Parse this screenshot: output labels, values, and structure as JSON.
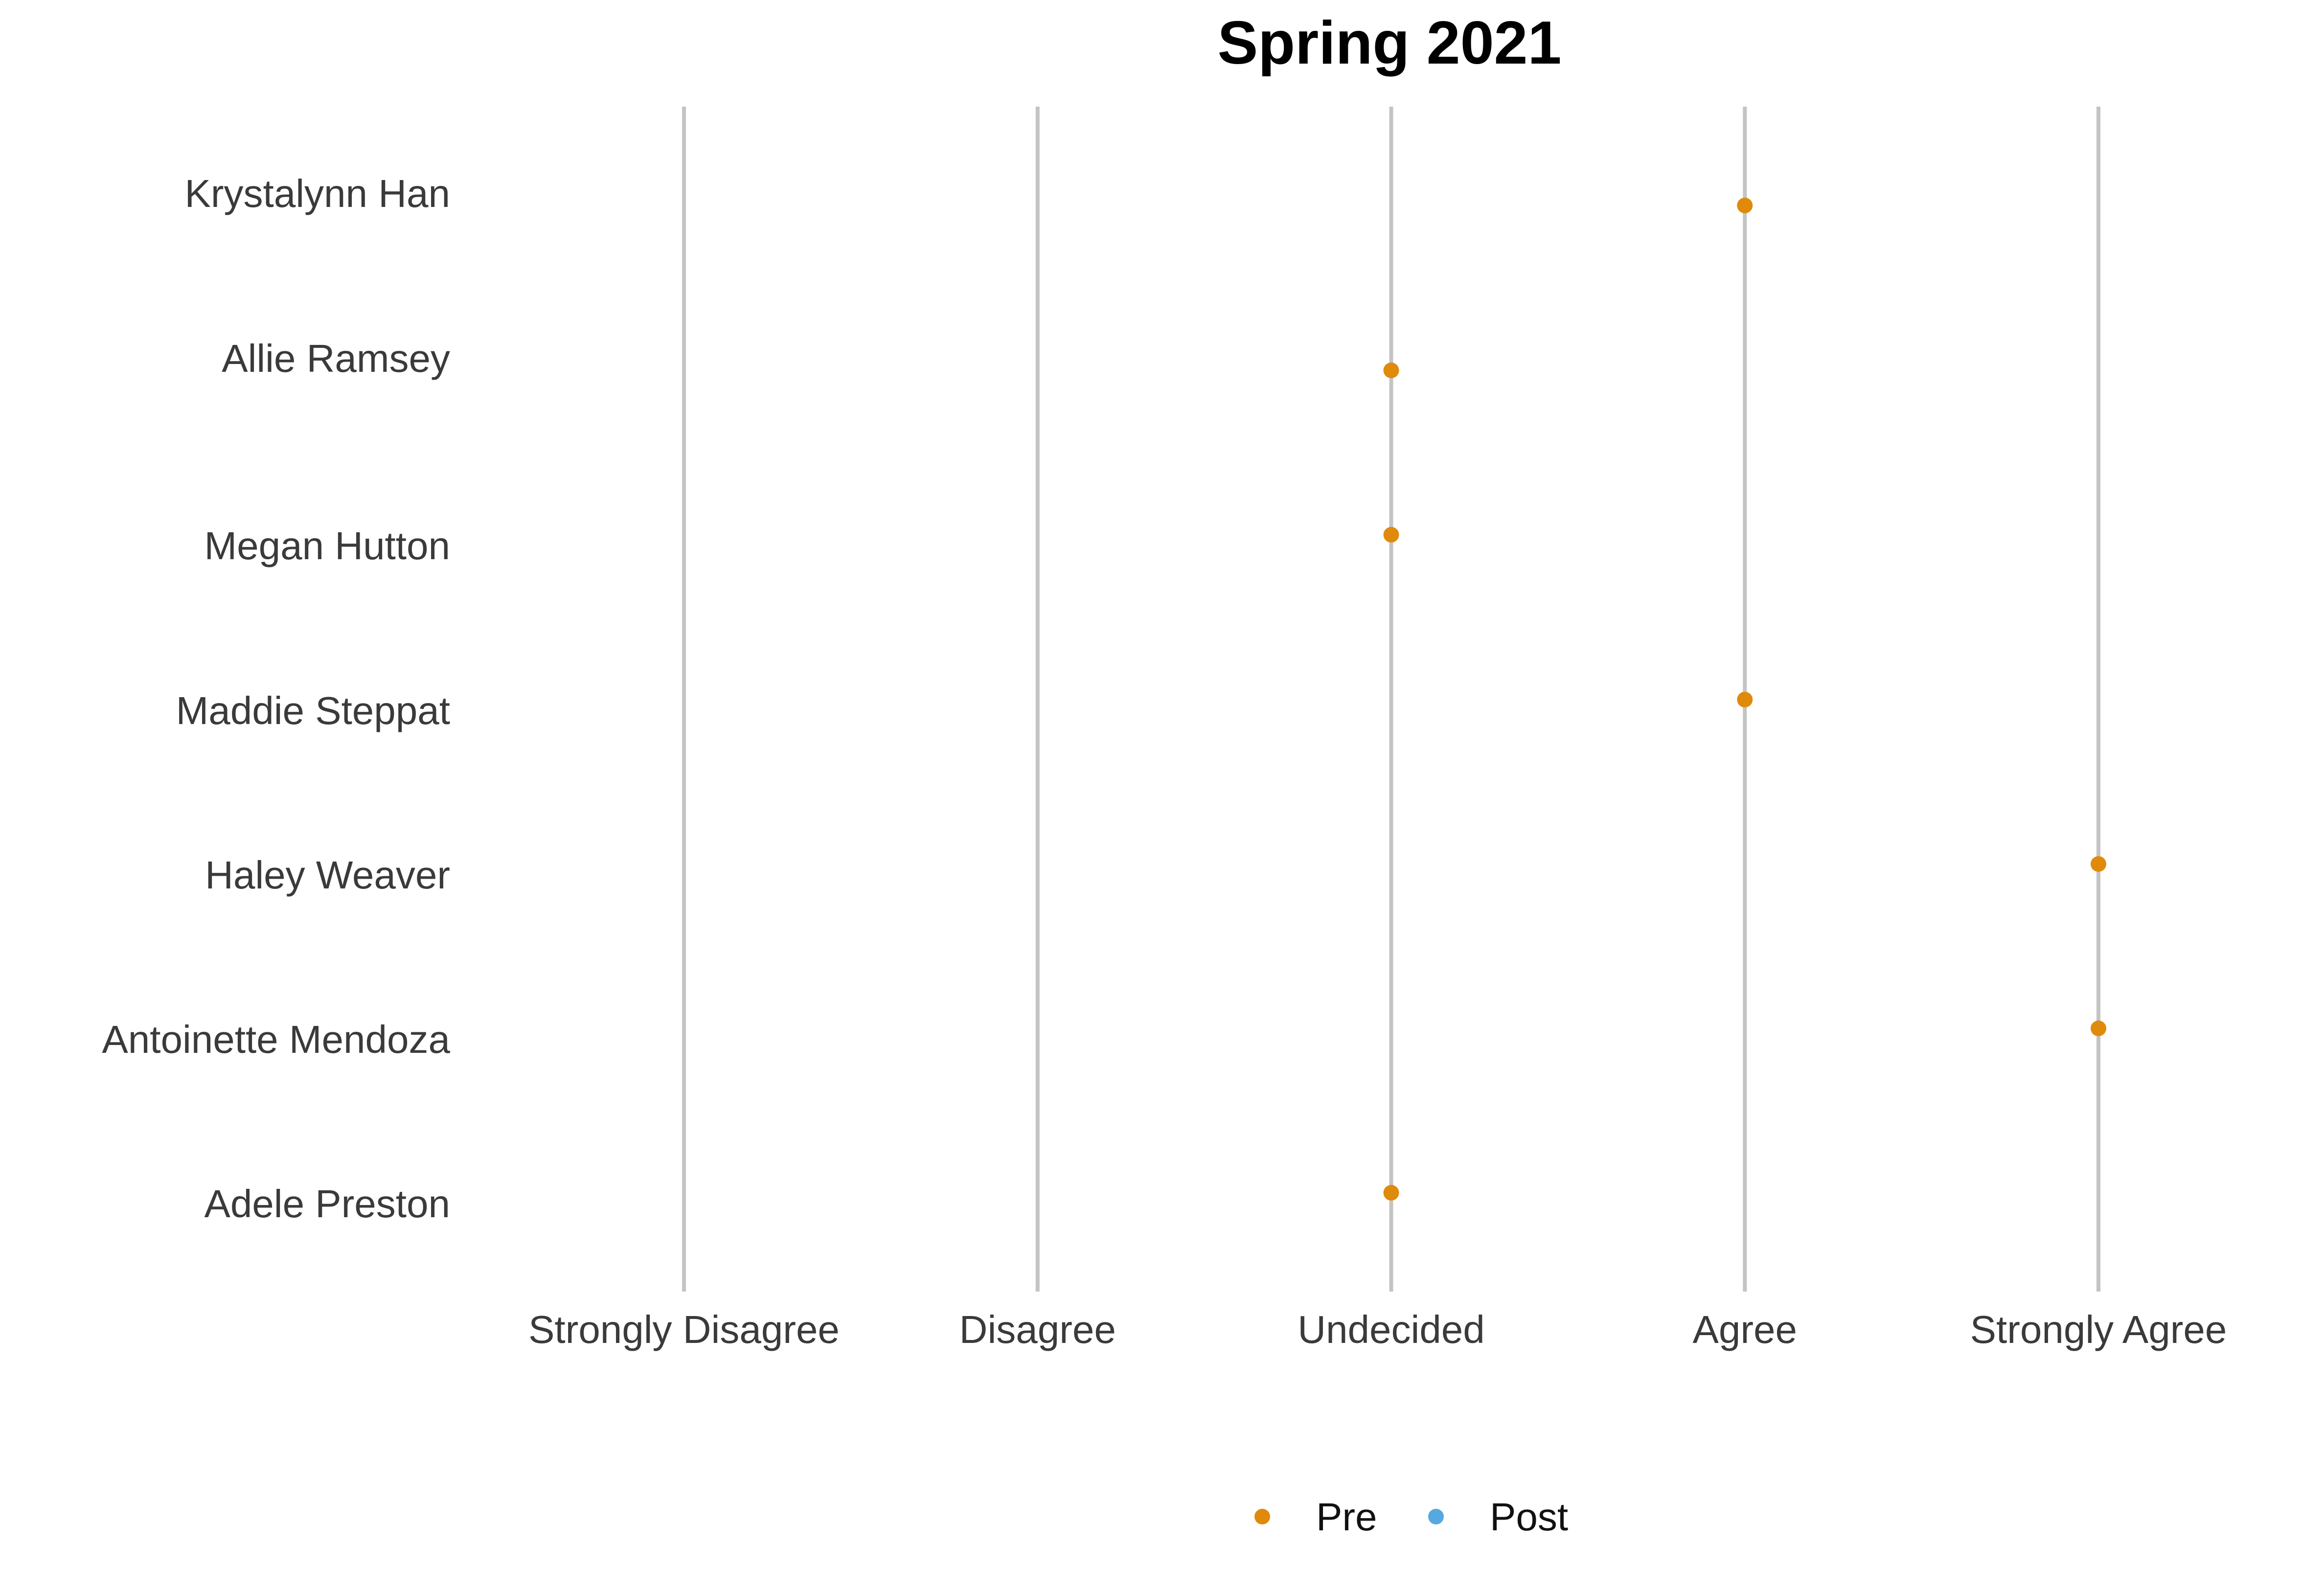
{
  "chart_data": {
    "type": "scatter",
    "title": "Spring 2021",
    "x_categories": [
      "Strongly Disagree",
      "Disagree",
      "Undecided",
      "Agree",
      "Strongly Agree"
    ],
    "y_categories": [
      "Krystalynn Han",
      "Allie Ramsey",
      "Megan Hutton",
      "Maddie Steppat",
      "Haley Weaver",
      "Antoinette Mendoza",
      "Adele Preston"
    ],
    "series": [
      {
        "name": "Pre",
        "color": "#E08A0B",
        "points": [
          {
            "y": "Krystalynn Han",
            "x": "Agree"
          },
          {
            "y": "Allie Ramsey",
            "x": "Undecided"
          },
          {
            "y": "Megan Hutton",
            "x": "Undecided"
          },
          {
            "y": "Maddie Steppat",
            "x": "Agree"
          },
          {
            "y": "Haley Weaver",
            "x": "Strongly Agree"
          },
          {
            "y": "Antoinette Mendoza",
            "x": "Strongly Agree"
          },
          {
            "y": "Adele Preston",
            "x": "Undecided"
          }
        ]
      },
      {
        "name": "Post",
        "color": "#56A8E0",
        "points": []
      }
    ],
    "grid": "vertical lines at each x category",
    "gridline_color": "#C4C4C4",
    "legend_position": "bottom"
  }
}
